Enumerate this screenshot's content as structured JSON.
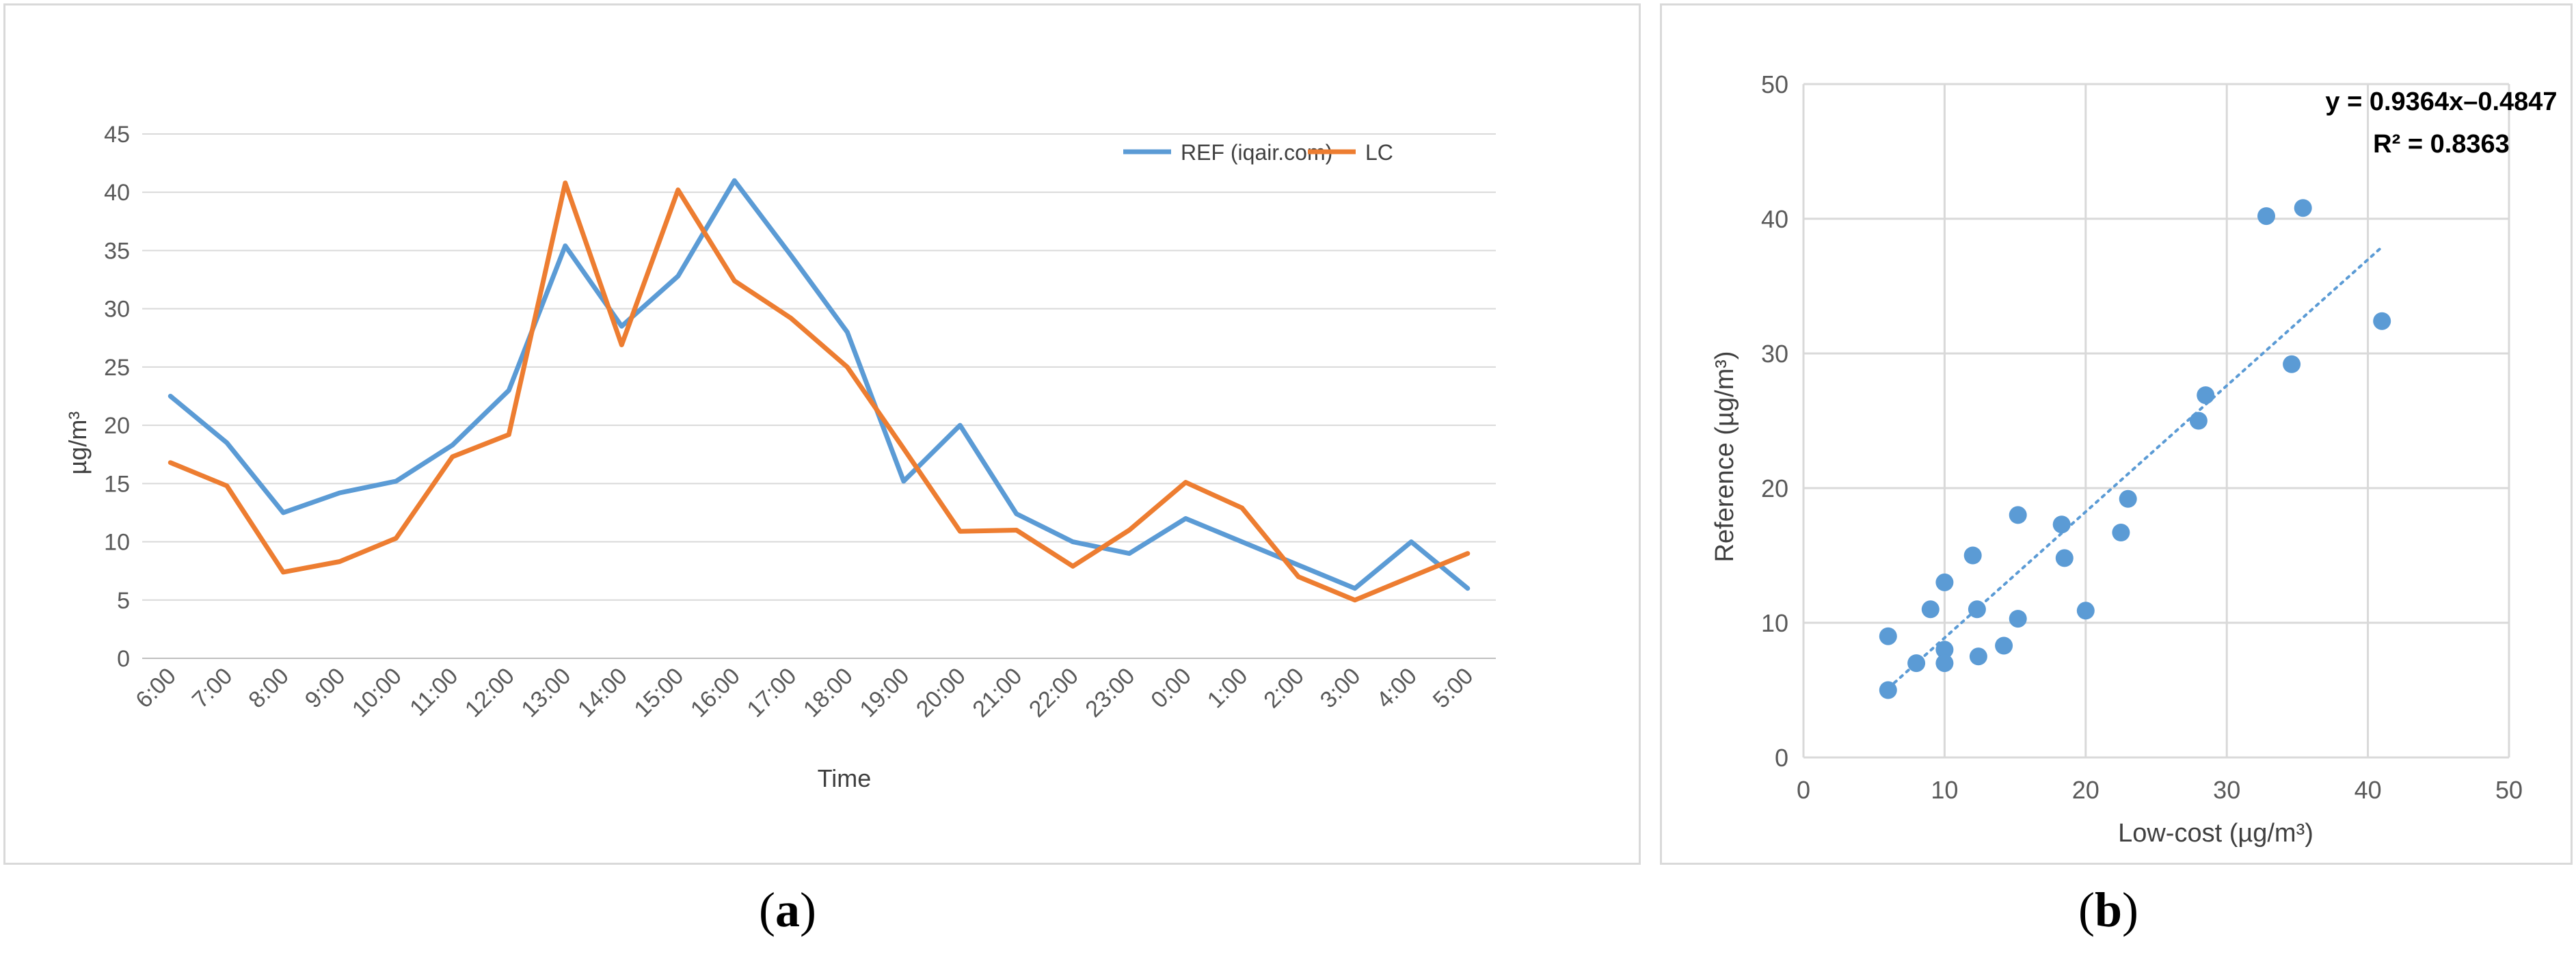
{
  "captions": {
    "a": {
      "open": "(",
      "letter": "a",
      "close": ")"
    },
    "b": {
      "open": "(",
      "letter": "b",
      "close": ")"
    }
  },
  "colors": {
    "ref": "#5b9bd5",
    "lc": "#ed7d31",
    "scatter": "#5b9bd5",
    "grid": "#d9d9d9",
    "axis_text": "#595959"
  },
  "chart_data": [
    {
      "type": "line",
      "panel": "a",
      "title": "",
      "xlabel": "Time",
      "ylabel": "µg/m³",
      "ylim": [
        0,
        45
      ],
      "yticks": [
        0,
        5,
        10,
        15,
        20,
        25,
        30,
        35,
        40,
        45
      ],
      "grid": true,
      "legend_position": "top-right",
      "categories": [
        "6:00",
        "7:00",
        "8:00",
        "9:00",
        "10:00",
        "11:00",
        "12:00",
        "13:00",
        "14:00",
        "15:00",
        "16:00",
        "17:00",
        "18:00",
        "19:00",
        "20:00",
        "21:00",
        "22:00",
        "23:00",
        "0:00",
        "1:00",
        "2:00",
        "3:00",
        "4:00",
        "5:00"
      ],
      "series": [
        {
          "name": "REF (iqair.com)",
          "color": "#5b9bd5",
          "values": [
            22.5,
            18.5,
            12.5,
            14.2,
            15.2,
            18.3,
            23.0,
            35.4,
            28.5,
            32.8,
            41.0,
            34.6,
            28.0,
            15.2,
            20.0,
            12.4,
            10.0,
            9.0,
            12.0,
            10.0,
            8.0,
            6.0,
            10.0,
            6.0
          ]
        },
        {
          "name": "LC",
          "color": "#ed7d31",
          "values": [
            16.8,
            14.8,
            7.4,
            8.3,
            10.3,
            17.3,
            19.2,
            40.8,
            26.9,
            40.2,
            32.4,
            29.2,
            25.0,
            18.0,
            10.9,
            11.0,
            7.9,
            11.0,
            15.1,
            12.9,
            7.0,
            5.0,
            7.0,
            9.0
          ]
        }
      ]
    },
    {
      "type": "scatter",
      "panel": "b",
      "title": "",
      "xlabel": "Low-cost (µg/m³)",
      "ylabel": "Reference (µg/m³)",
      "xlim": [
        0,
        50
      ],
      "ylim": [
        0,
        50
      ],
      "xticks": [
        0,
        10,
        20,
        30,
        40,
        50
      ],
      "yticks": [
        0,
        10,
        20,
        30,
        40,
        50
      ],
      "grid": true,
      "trendline": {
        "equation": "y = 0.9364x–0.4847",
        "r2": "R² = 0.8363",
        "slope": 0.9364,
        "intercept": -0.4847,
        "x_range": [
          6,
          41
        ]
      },
      "points": [
        {
          "x": 6.0,
          "y": 9.0
        },
        {
          "x": 6.0,
          "y": 5.0
        },
        {
          "x": 8.0,
          "y": 7.0
        },
        {
          "x": 9.0,
          "y": 11.0
        },
        {
          "x": 10.0,
          "y": 13.0
        },
        {
          "x": 10.0,
          "y": 8.0
        },
        {
          "x": 10.0,
          "y": 7.0
        },
        {
          "x": 12.0,
          "y": 15.0
        },
        {
          "x": 12.3,
          "y": 11.0
        },
        {
          "x": 12.4,
          "y": 7.5
        },
        {
          "x": 14.2,
          "y": 8.3
        },
        {
          "x": 15.2,
          "y": 18.0
        },
        {
          "x": 15.2,
          "y": 10.3
        },
        {
          "x": 18.3,
          "y": 17.3
        },
        {
          "x": 18.5,
          "y": 14.8
        },
        {
          "x": 20.0,
          "y": 10.9
        },
        {
          "x": 22.5,
          "y": 16.7
        },
        {
          "x": 23.0,
          "y": 19.2
        },
        {
          "x": 28.0,
          "y": 25.0
        },
        {
          "x": 28.5,
          "y": 26.9
        },
        {
          "x": 32.8,
          "y": 40.2
        },
        {
          "x": 34.6,
          "y": 29.2
        },
        {
          "x": 35.4,
          "y": 40.8
        },
        {
          "x": 41.0,
          "y": 32.4
        }
      ]
    }
  ]
}
